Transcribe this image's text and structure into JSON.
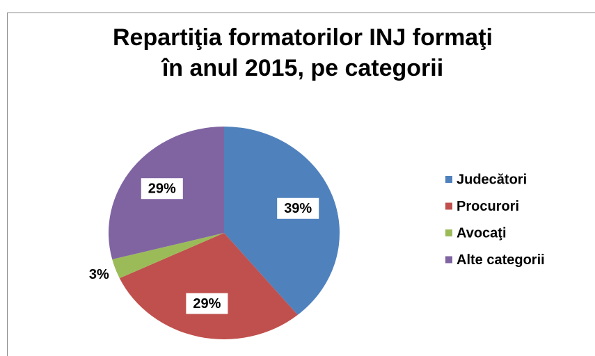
{
  "chart_data": {
    "type": "pie",
    "title": [
      "Repartiţia formatorilor INJ formaţi",
      "în anul 2015, pe categorii"
    ],
    "categories": [
      "Judecători",
      "Procurori",
      "Avocaţi",
      "Alte categorii"
    ],
    "values": [
      39,
      29,
      3,
      29
    ],
    "value_labels": [
      "39%",
      "29%",
      "3%",
      "29%"
    ],
    "colors": [
      "#4f81bd",
      "#c0504d",
      "#9bbb59",
      "#8064a2"
    ],
    "legend": "right"
  }
}
